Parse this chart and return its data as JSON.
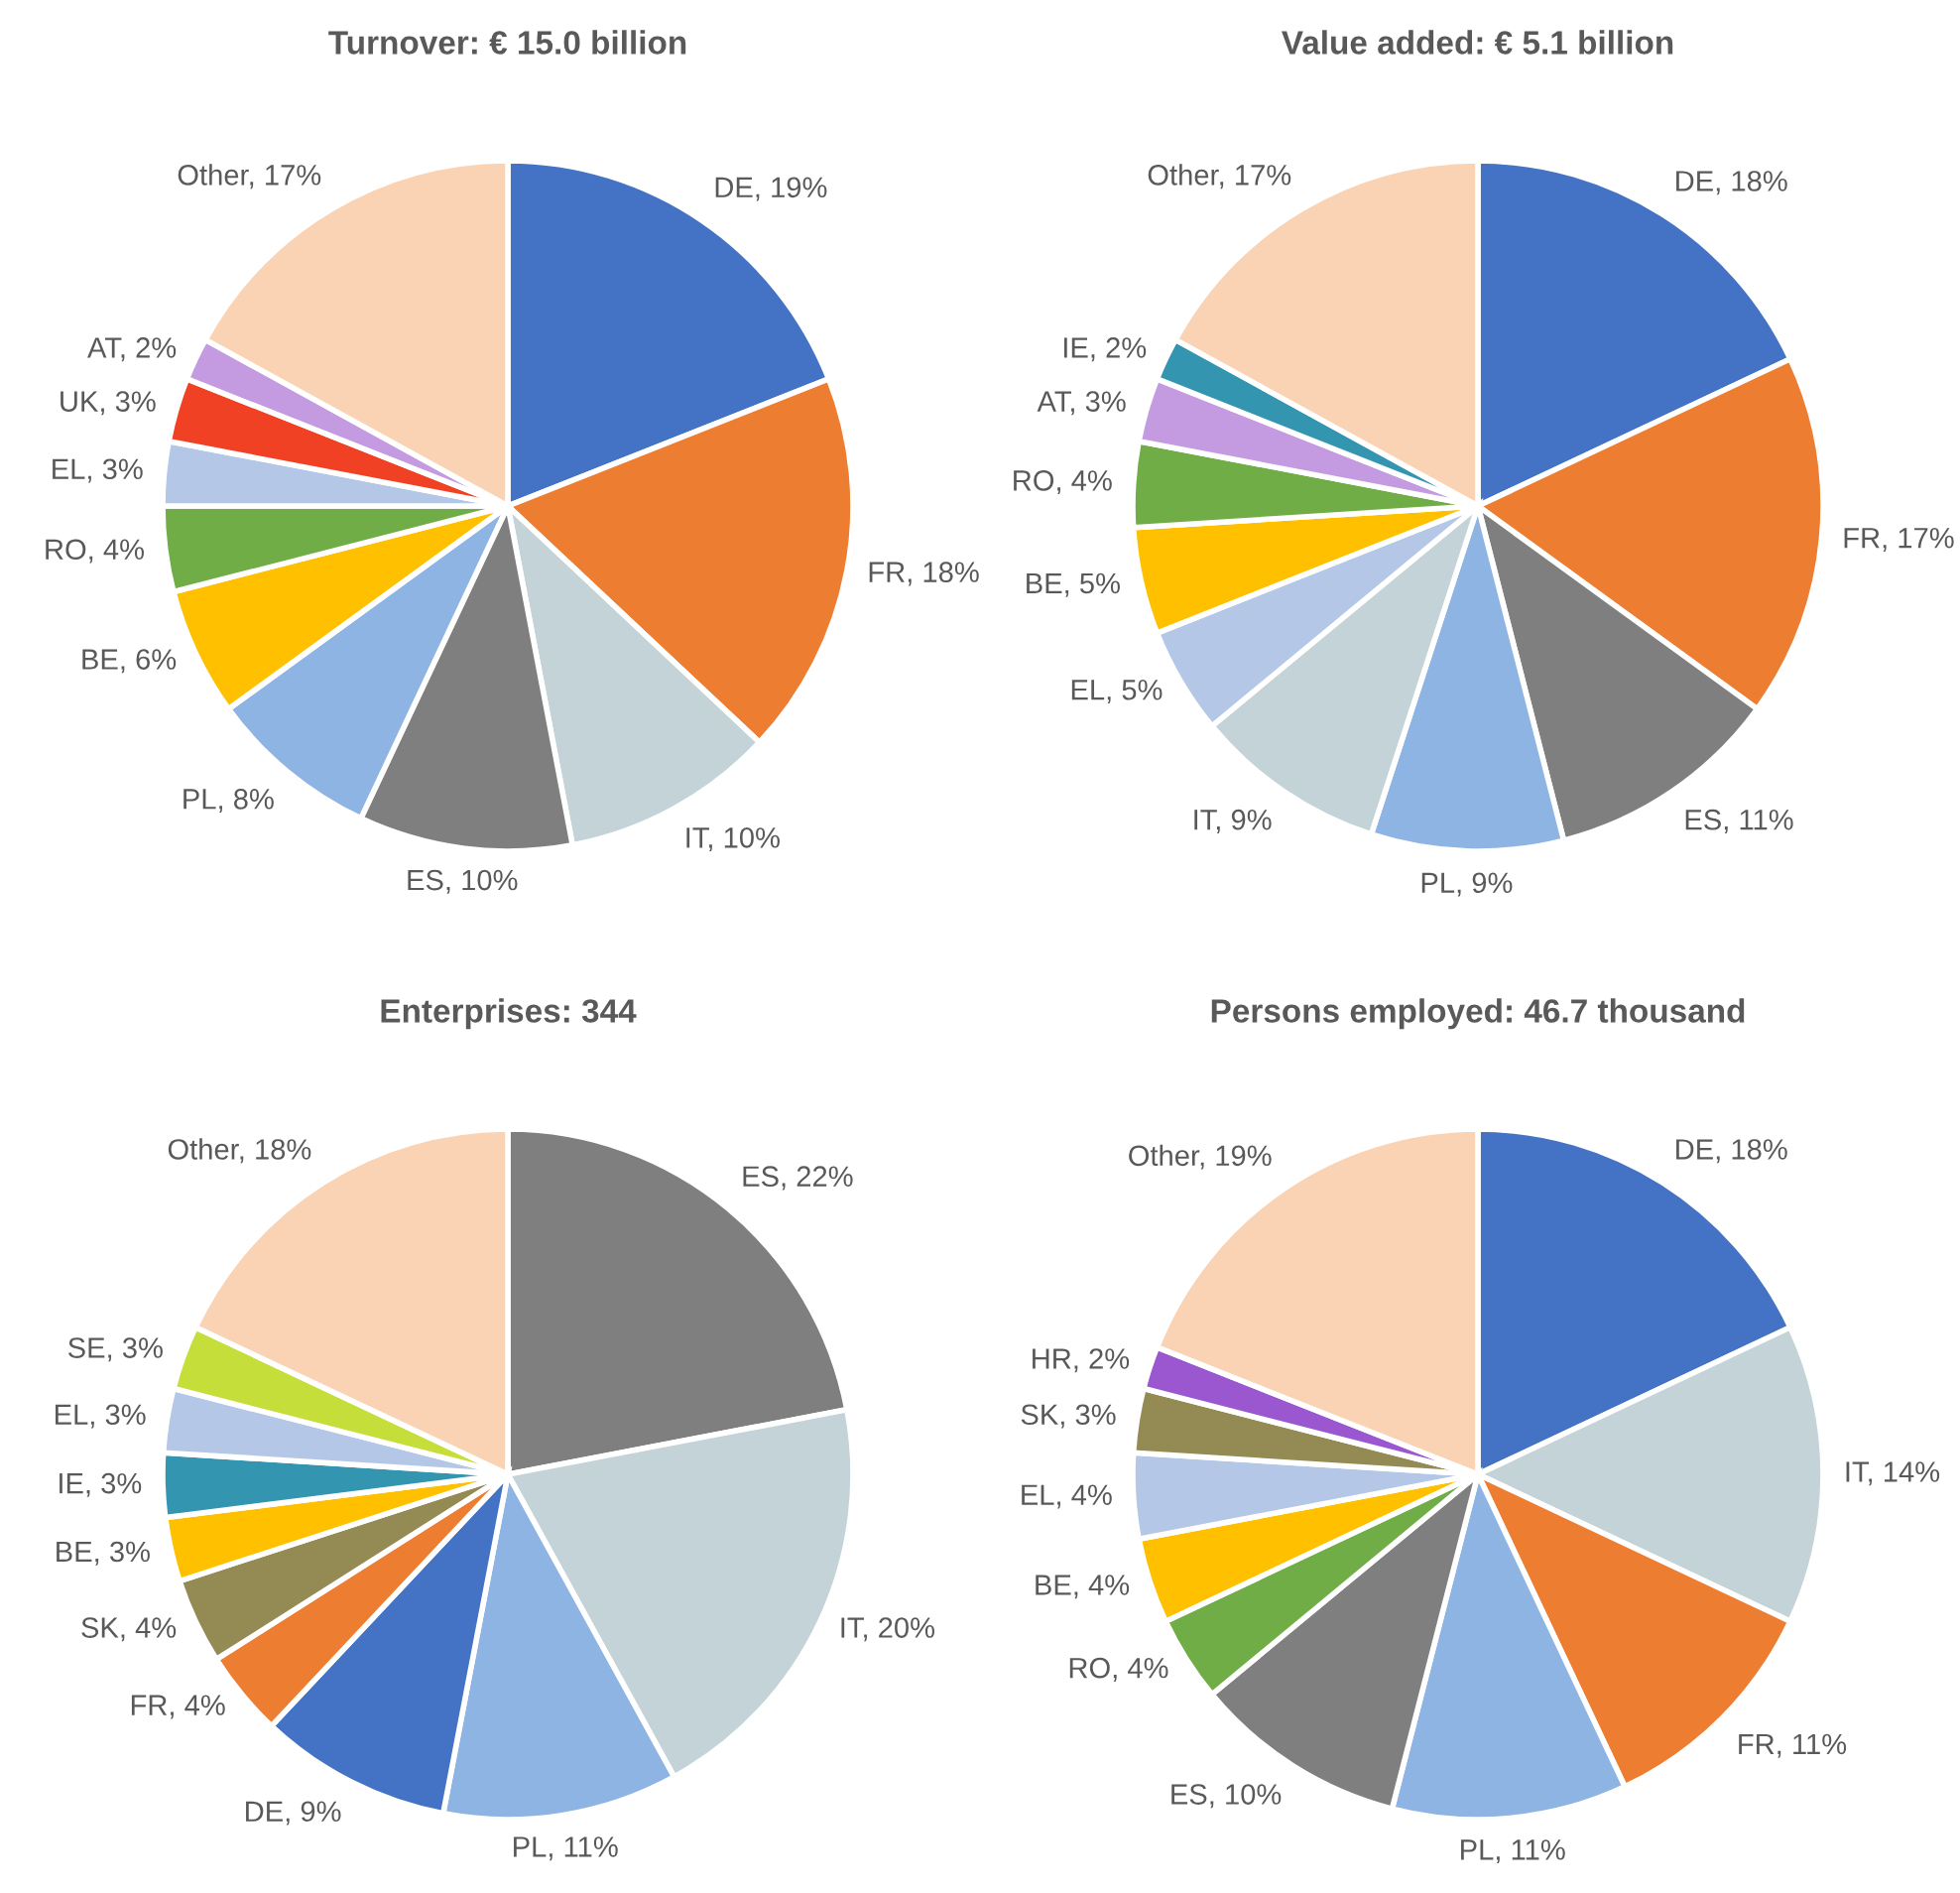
{
  "chart_data": [
    {
      "type": "pie",
      "title": "Turnover: € 15.0 billion",
      "categories": [
        "DE",
        "FR",
        "IT",
        "ES",
        "PL",
        "BE",
        "RO",
        "EL",
        "UK",
        "AT",
        "Other"
      ],
      "values": [
        19,
        18,
        10,
        10,
        8,
        6,
        4,
        3,
        3,
        2,
        17
      ],
      "value_labels": [
        "19%",
        "18%",
        "10%",
        "10%",
        "8%",
        "6%",
        "4%",
        "3%",
        "3%",
        "2%",
        "17%"
      ],
      "colors": [
        "#4472c4",
        "#ed7d31",
        "#c3d3d7",
        "#7f7f7f",
        "#8eb4e3",
        "#ffc000",
        "#70ad47",
        "#b4c7e7",
        "#f04124",
        "#c49be0",
        "#fad3b5"
      ]
    },
    {
      "type": "pie",
      "title": "Value added: € 5.1 billion",
      "categories": [
        "DE",
        "FR",
        "ES",
        "PL",
        "IT",
        "EL",
        "BE",
        "RO",
        "AT",
        "IE",
        "Other"
      ],
      "values": [
        18,
        17,
        11,
        9,
        9,
        5,
        5,
        4,
        3,
        2,
        17
      ],
      "value_labels": [
        "18%",
        "17%",
        "11%",
        "9%",
        "9%",
        "5%",
        "5%",
        "4%",
        "3%",
        "2%",
        "17%"
      ],
      "colors": [
        "#4472c4",
        "#ed7d31",
        "#7f7f7f",
        "#8eb4e3",
        "#c3d3d7",
        "#b4c7e7",
        "#ffc000",
        "#70ad47",
        "#c49be0",
        "#3495b0",
        "#fad3b5"
      ]
    },
    {
      "type": "pie",
      "title": "Enterprises: 344",
      "categories": [
        "ES",
        "IT",
        "PL",
        "DE",
        "FR",
        "SK",
        "BE",
        "IE",
        "EL",
        "SE",
        "Other"
      ],
      "values": [
        22,
        20,
        11,
        9,
        4,
        4,
        3,
        3,
        3,
        3,
        18
      ],
      "value_labels": [
        "22%",
        "20%",
        "11%",
        "9%",
        "4%",
        "4%",
        "3%",
        "3%",
        "3%",
        "3%",
        "18%"
      ],
      "colors": [
        "#7f7f7f",
        "#c3d3d7",
        "#8eb4e3",
        "#4472c4",
        "#ed7d31",
        "#948a54",
        "#ffc000",
        "#3495b0",
        "#b4c7e7",
        "#c6de3a",
        "#fad3b5"
      ]
    },
    {
      "type": "pie",
      "title": "Persons employed: 46.7 thousand",
      "categories": [
        "DE",
        "IT",
        "FR",
        "PL",
        "ES",
        "RO",
        "BE",
        "EL",
        "SK",
        "HR",
        "Other"
      ],
      "values": [
        18,
        14,
        11,
        11,
        10,
        4,
        4,
        4,
        3,
        2,
        19
      ],
      "value_labels": [
        "18%",
        "14%",
        "11%",
        "11%",
        "10%",
        "4%",
        "4%",
        "4%",
        "3%",
        "2%",
        "19%"
      ],
      "colors": [
        "#4472c4",
        "#c3d3d7",
        "#ed7d31",
        "#8eb4e3",
        "#7f7f7f",
        "#70ad47",
        "#ffc000",
        "#b4c7e7",
        "#948a54",
        "#9a57cf",
        "#fad3b5"
      ]
    }
  ]
}
